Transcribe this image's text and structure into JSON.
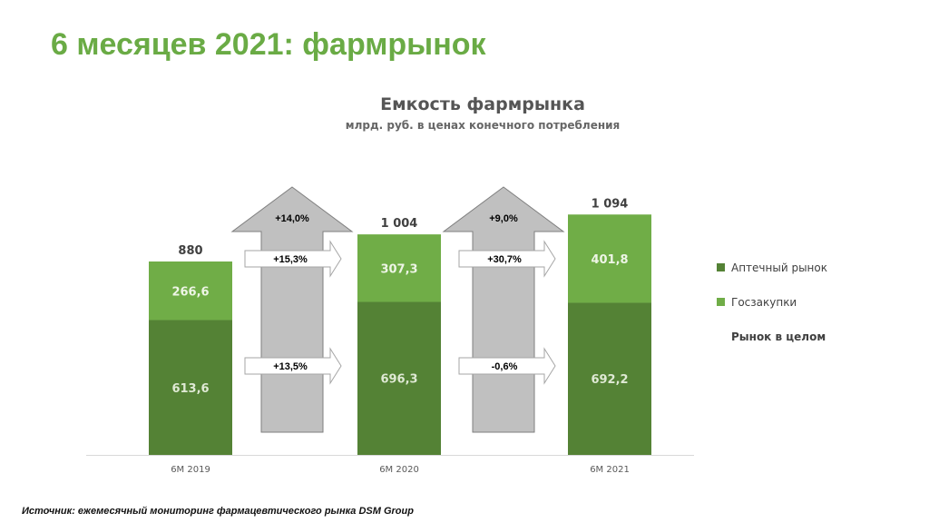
{
  "slide": {
    "title": "6 месяцев 2021: фармрынок",
    "source": "Источник: ежемесячный мониторинг фармацевтического рынка DSM Group"
  },
  "colors": {
    "title": "#6aab45",
    "retail": "#548235",
    "procurement": "#70ad47",
    "arrow": "#c0c0c0",
    "axis": "#d9d9d9"
  },
  "chart_data": {
    "type": "bar",
    "stacked": true,
    "title": "Емкость фармрынка",
    "subtitle": "млрд. руб. в ценах конечного потребления",
    "categories": [
      "6M 2019",
      "6M 2020",
      "6M 2021"
    ],
    "series": [
      {
        "name": "Аптечный рынок",
        "values": [
          613.6,
          696.3,
          692.2
        ],
        "labels": [
          "613,6",
          "696,3",
          "692,2"
        ]
      },
      {
        "name": "Госзакупки",
        "values": [
          266.6,
          307.3,
          401.8
        ],
        "labels": [
          "266,6",
          "307,3",
          "401,8"
        ]
      }
    ],
    "totals": {
      "name": "Рынок в целом",
      "values": [
        880,
        1004,
        1094
      ],
      "labels": [
        "880",
        "1 004",
        "1 094"
      ]
    },
    "growth": [
      {
        "between": [
          "6M 2019",
          "6M 2020"
        ],
        "total": "+14,0%",
        "procurement": "+15,3%",
        "retail": "+13,5%"
      },
      {
        "between": [
          "6M 2020",
          "6M 2021"
        ],
        "total": "+9,0%",
        "procurement": "+30,7%",
        "retail": "-0,6%"
      }
    ],
    "ylim": [
      0,
      1200
    ],
    "grid": false,
    "legend_position": "right"
  }
}
